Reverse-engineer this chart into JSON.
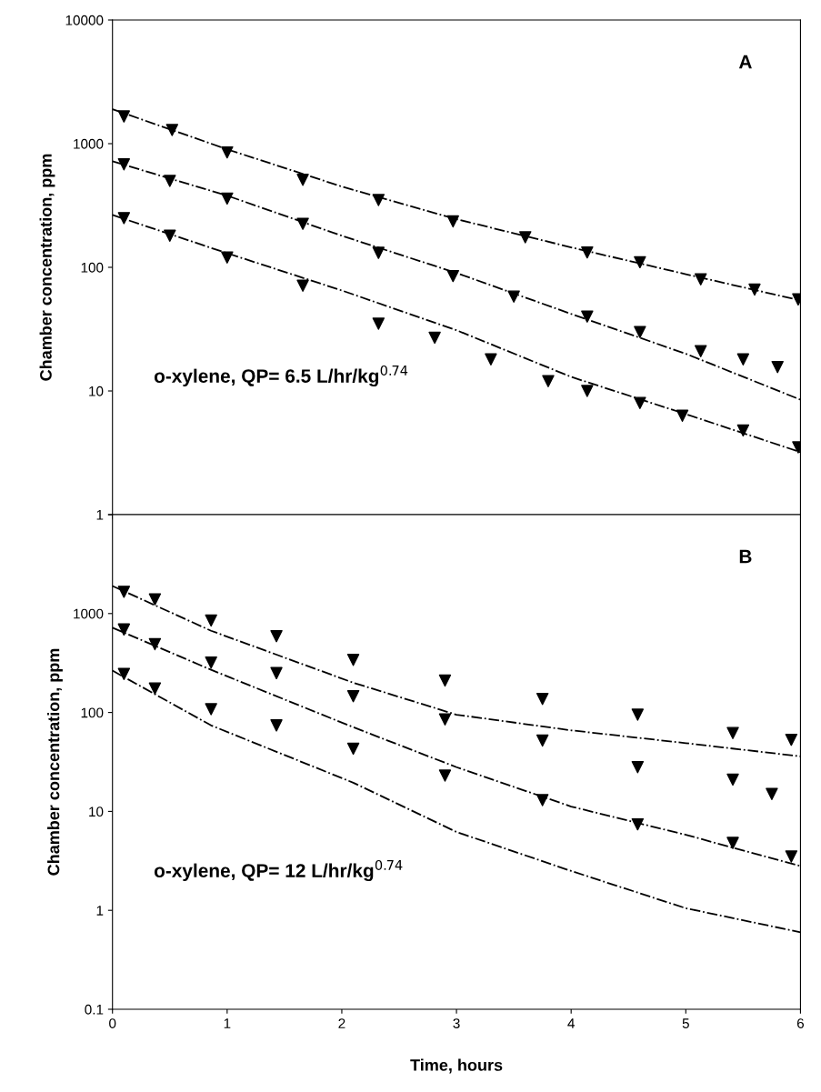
{
  "chart_data": [
    {
      "type": "scatter",
      "ylabel": "Chamber concentration, ppm",
      "log": "y",
      "xlim": [
        0,
        6
      ],
      "xticks": [
        0,
        1,
        2,
        3,
        4,
        5,
        6
      ],
      "ylim": [
        1,
        10000
      ],
      "yticks": [
        1,
        10,
        100,
        1000,
        10000
      ],
      "tick_labels": "y",
      "grid": false,
      "legend": false,
      "annotations": [
        "A",
        "o-xylene, QP= 6.5 L/hr/kg$^{0.74}$"
      ],
      "series": [
        {
          "marker": "triangle",
          "color": "#000000",
          "x": [
            0.1,
            0.52,
            1.0,
            1.66,
            2.32,
            2.97,
            3.6,
            4.14,
            4.6,
            5.13,
            5.6,
            5.98
          ],
          "values": [
            1660,
            1290,
            850,
            510,
            350,
            235,
            175,
            132,
            110,
            80,
            66,
            55
          ]
        },
        {
          "marker": "triangle",
          "color": "#000000",
          "x": [
            0.1,
            0.5,
            1.0,
            1.66,
            2.32,
            2.97,
            3.5,
            4.14,
            4.6,
            5.13,
            5.5,
            5.8
          ],
          "values": [
            680,
            500,
            360,
            225,
            131,
            85,
            58,
            40,
            30,
            21,
            18,
            15.6
          ]
        },
        {
          "marker": "triangle",
          "color": "#000000",
          "x": [
            0.1,
            0.5,
            1.0,
            1.66,
            2.32,
            2.81,
            3.3,
            3.8,
            4.14,
            4.6,
            4.97,
            5.5,
            5.98
          ],
          "values": [
            250,
            180,
            120,
            71,
            35,
            27,
            18,
            12,
            10,
            8,
            6.3,
            4.8,
            3.5
          ]
        },
        {
          "type": "line",
          "line_style": "dashdot",
          "color": "#000000",
          "x": [
            0,
            1,
            2,
            3,
            4,
            5,
            6
          ],
          "values": [
            1900,
            900,
            450,
            245,
            145,
            88,
            54
          ]
        },
        {
          "type": "line",
          "line_style": "dashdot",
          "color": "#000000",
          "x": [
            0,
            1,
            2,
            3,
            4,
            5,
            6
          ],
          "values": [
            720,
            380,
            180,
            90,
            42,
            20,
            8.5
          ]
        },
        {
          "type": "line",
          "line_style": "dashdot",
          "color": "#000000",
          "x": [
            0,
            1,
            2,
            3,
            4,
            5,
            6
          ],
          "values": [
            265,
            130,
            65,
            31,
            13,
            6.5,
            3.2
          ]
        }
      ]
    },
    {
      "type": "scatter",
      "xlabel": "Time, hours",
      "ylabel": "Chamber concentration, ppm",
      "log": "y",
      "xlim": [
        0,
        6
      ],
      "xticks": [
        0,
        1,
        2,
        3,
        4,
        5,
        6
      ],
      "ylim": [
        0.1,
        10000
      ],
      "yticks": [
        0.1,
        1,
        10,
        100,
        1000,
        {
          "value": 10000,
          "label": null
        }
      ],
      "grid": false,
      "legend": false,
      "annotations": [
        "B",
        "o-xylene, QP= 12 L/hr/kg$^{0.74}$"
      ],
      "series": [
        {
          "marker": "triangle",
          "color": "#000000",
          "x": [
            0.1,
            0.37,
            0.86,
            1.43,
            2.1,
            2.9,
            3.75,
            4.58,
            5.41,
            5.92
          ],
          "values": [
            1660,
            1390,
            850,
            590,
            340,
            210,
            137,
            95,
            62,
            53
          ]
        },
        {
          "marker": "triangle",
          "color": "#000000",
          "x": [
            0.1,
            0.37,
            0.86,
            1.43,
            2.1,
            2.9,
            3.75,
            4.58,
            5.41,
            5.75
          ],
          "values": [
            690,
            490,
            320,
            250,
            146,
            85,
            52,
            28,
            21,
            15
          ]
        },
        {
          "marker": "triangle",
          "color": "#000000",
          "x": [
            0.1,
            0.37,
            0.86,
            1.43,
            2.1,
            2.9,
            3.75,
            4.58,
            5.41,
            5.92
          ],
          "values": [
            245,
            175,
            108,
            74,
            43,
            23,
            13,
            7.4,
            4.8,
            3.5
          ]
        },
        {
          "type": "line",
          "line_style": "dashdot",
          "color": "#000000",
          "x": [
            0,
            0.86,
            2.1,
            3.0,
            4.0,
            5.0,
            6.0
          ],
          "values": [
            1900,
            670,
            200,
            95,
            66,
            49,
            36
          ]
        },
        {
          "type": "line",
          "line_style": "dashdot",
          "color": "#000000",
          "x": [
            0,
            0.86,
            2.1,
            3.0,
            4.0,
            5.0,
            6.0
          ],
          "values": [
            720,
            270,
            71,
            28,
            11.2,
            5.8,
            2.8
          ]
        },
        {
          "type": "line",
          "line_style": "dashdot",
          "color": "#000000",
          "x": [
            0,
            0.86,
            2.1,
            3.0,
            4.0,
            5.0,
            6.0
          ],
          "values": [
            265,
            74,
            19.5,
            6.2,
            2.5,
            1.05,
            0.6
          ]
        }
      ]
    }
  ]
}
